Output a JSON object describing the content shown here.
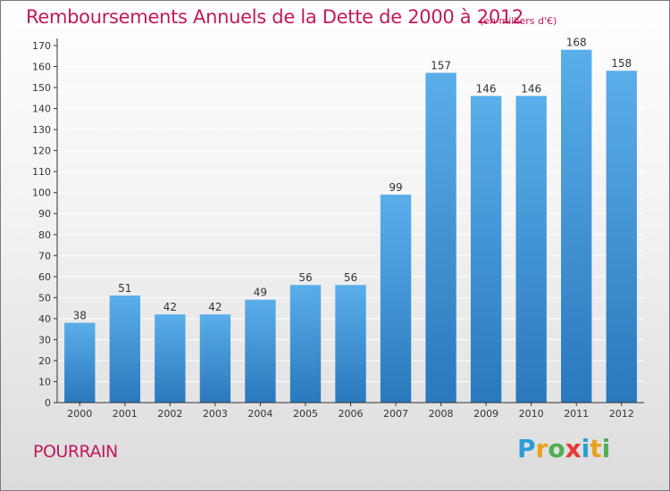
{
  "title": "Remboursements Annuels de la Dette de 2000 à 2012",
  "unit_note": "(en milliers d'€)",
  "commune": "POURRAIN",
  "logo_text": "Proxiti",
  "logo_colors": [
    "#2a9fd6",
    "#e8a21a",
    "#4caf50",
    "#e53935",
    "#2a9fd6",
    "#e8a21a",
    "#4caf50"
  ],
  "colors": {
    "accent": "#c2185b",
    "bar_top": "#5aaeea",
    "bar_bottom": "#2a78bd",
    "grid": "#ffffff",
    "axis": "#333333"
  },
  "chart_data": {
    "type": "bar",
    "categories": [
      "2000",
      "2001",
      "2002",
      "2003",
      "2004",
      "2005",
      "2006",
      "2007",
      "2008",
      "2009",
      "2010",
      "2011",
      "2012"
    ],
    "values": [
      38,
      51,
      42,
      42,
      49,
      56,
      56,
      99,
      157,
      146,
      146,
      168,
      158
    ],
    "ylim": [
      0,
      170
    ],
    "yticks": [
      0,
      10,
      20,
      30,
      40,
      50,
      60,
      70,
      80,
      90,
      100,
      110,
      120,
      130,
      140,
      150,
      160,
      170
    ],
    "grid": true,
    "data_labels": true
  }
}
